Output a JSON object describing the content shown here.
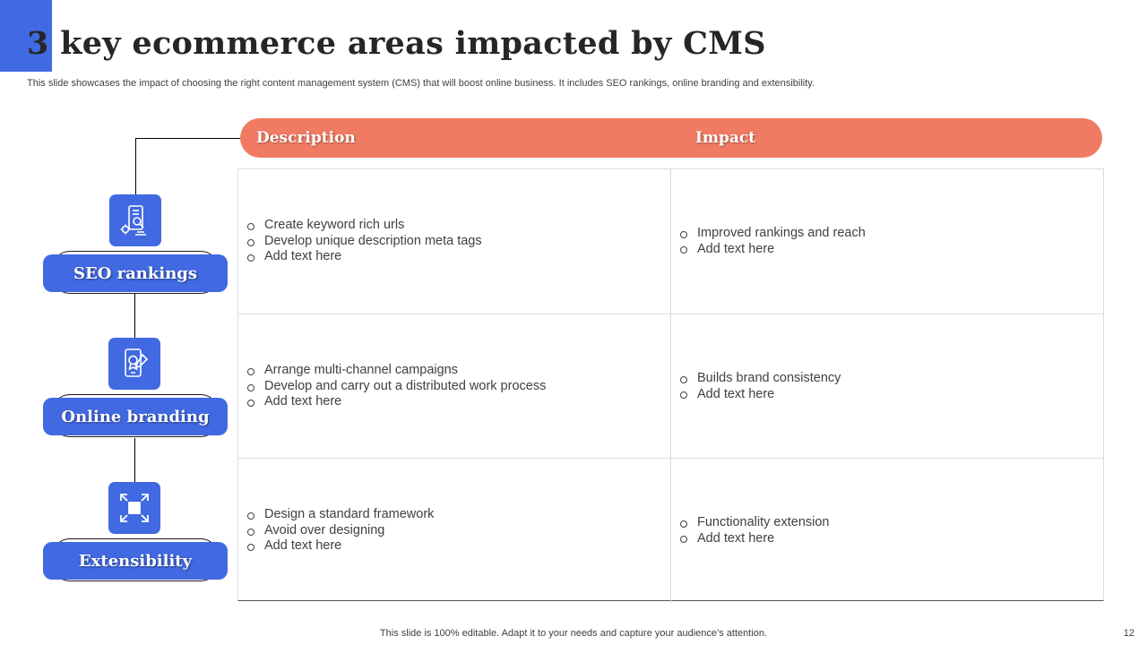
{
  "slide": {
    "title": "3 key ecommerce areas impacted by CMS",
    "subtitle": "This slide showcases the impact of choosing the right content management system (CMS) that will boost online business. It includes SEO rankings,  online branding and extensibility.",
    "footer": "This slide is 100% editable. Adapt it to your needs and capture your audience’s attention.",
    "page_number": "12"
  },
  "colors": {
    "accent": "#4169e1",
    "header": "#f07b62"
  },
  "table": {
    "header": {
      "description": "Description",
      "impact": "Impact"
    },
    "rows": [
      {
        "area": "SEO rankings",
        "icon": "seo-mobile-icon",
        "description": [
          "Create keyword rich urls",
          "Develop unique description meta tags",
          "Add text here"
        ],
        "impact": [
          "Improved rankings and reach",
          "Add text here"
        ]
      },
      {
        "area": "Online branding",
        "icon": "branding-phone-icon",
        "description": [
          "Arrange multi-channel campaigns",
          "Develop and carry out a distributed work process",
          "Add text here"
        ],
        "impact": [
          "Builds brand consistency",
          "Add text here"
        ]
      },
      {
        "area": "Extensibility",
        "icon": "expand-arrows-icon",
        "description": [
          "Design a standard framework",
          "Avoid over designing",
          "Add text here"
        ],
        "impact": [
          "Functionality extension",
          "Add text here"
        ]
      }
    ]
  }
}
